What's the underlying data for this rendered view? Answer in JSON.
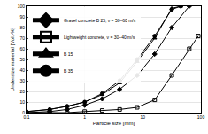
{
  "chart_data": {
    "type": "line",
    "xlabel": "Particle size [mm]",
    "ylabel": "Undersize material [Vol.-%]",
    "log": "x",
    "grid": true,
    "legend": "upper left",
    "xlim": [
      0.1,
      100
    ],
    "xticks": [
      0.1,
      1,
      10,
      100
    ],
    "ylim": [
      0,
      100
    ],
    "yticks": [
      0,
      10,
      20,
      30,
      40,
      50,
      60,
      70,
      80,
      90,
      100
    ],
    "series": [
      {
        "name": "Gravel concrete B 25, ν = 50–60 m/s",
        "color": "#000000",
        "marker": "diamond",
        "line_style": "solid",
        "x": [
          0.1,
          0.25,
          0.5,
          1,
          2,
          4,
          8,
          16,
          31.5,
          63
        ],
        "values": [
          0,
          1,
          3,
          7,
          13,
          22,
          35,
          55,
          80,
          100
        ]
      },
      {
        "name": "Lightweight concrete, ν = 30–40 m/s",
        "color": "#000000",
        "marker": "square-open",
        "line_style": "solid",
        "x": [
          0.1,
          0.25,
          0.5,
          1,
          2,
          4,
          8,
          16,
          31.5,
          63,
          90
        ],
        "values": [
          0,
          0,
          0,
          1,
          2,
          3,
          5,
          12,
          35,
          60,
          72
        ]
      },
      {
        "name": "B 15",
        "color": "#000000",
        "marker": "triangle-up",
        "line_style": "solid",
        "x": [
          0.1,
          0.25,
          0.5,
          1,
          2,
          4,
          8,
          16,
          31.5,
          45
        ],
        "values": [
          1,
          3,
          6,
          10,
          17,
          28,
          48,
          70,
          98,
          100
        ]
      },
      {
        "name": "B 35",
        "color": "#000000",
        "marker": "circle",
        "line_style": "solid",
        "x": [
          0.1,
          0.25,
          0.5,
          1,
          2,
          4,
          8,
          16,
          31.5,
          45
        ],
        "values": [
          1,
          3,
          6,
          10,
          18,
          30,
          50,
          72,
          97,
          100
        ]
      }
    ]
  }
}
